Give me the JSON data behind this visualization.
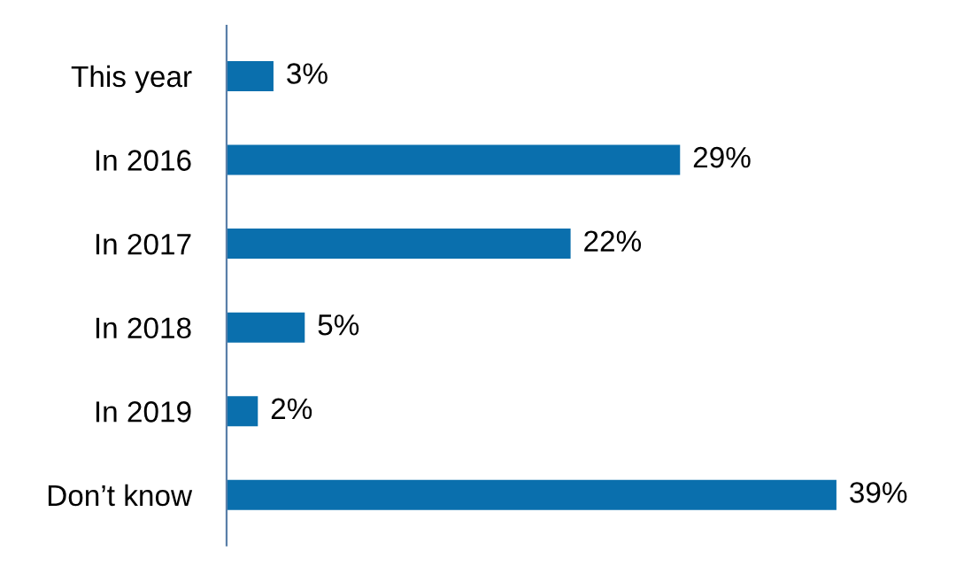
{
  "chart_data": {
    "type": "bar",
    "orientation": "horizontal",
    "categories": [
      "This year",
      "In 2016",
      "In 2017",
      "In 2018",
      "In 2019",
      "Don’t know"
    ],
    "values": [
      3,
      29,
      22,
      5,
      2,
      39
    ],
    "value_labels": [
      "3%",
      "29%",
      "22%",
      "5%",
      "2%",
      "39%"
    ],
    "color": "#0a6fad",
    "grid": false,
    "legend": false
  }
}
